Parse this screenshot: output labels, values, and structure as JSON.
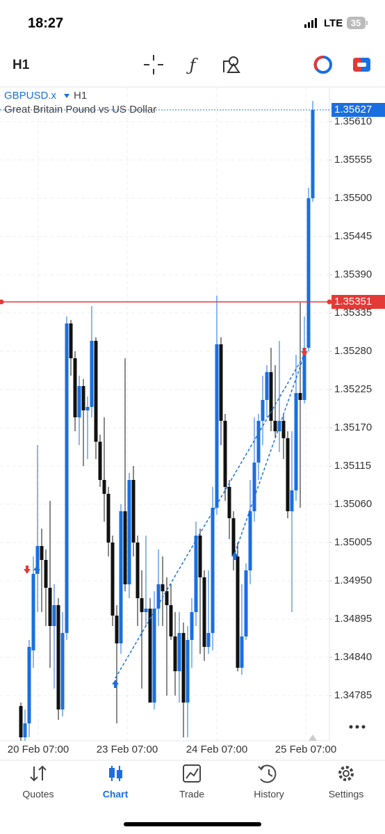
{
  "status_bar": {
    "time": "18:27",
    "network": "LTE",
    "battery": "35"
  },
  "toolbar": {
    "timeframe": "H1"
  },
  "chart": {
    "symbol": "GBPUSD.x",
    "timeframe": "H1",
    "description": "Great Britain Pound vs US Dollar",
    "ylim": [
      1.3472,
      1.3566
    ],
    "yticks": [
      {
        "value": 1.3561,
        "label": "1.35610"
      },
      1.35555,
      {
        "value": 1.355,
        "label": "1.35500"
      },
      1.35445,
      {
        "value": 1.3539,
        "label": "1.35390"
      },
      1.35335,
      {
        "value": 1.3528,
        "label": "1.35280"
      },
      1.35225,
      {
        "value": 1.3517,
        "label": "1.35170"
      },
      1.35115,
      {
        "value": 1.3506,
        "label": "1.35060"
      },
      1.35005,
      {
        "value": 1.3495,
        "label": "1.34950"
      },
      1.34895,
      {
        "value": 1.3484,
        "label": "1.34840"
      },
      1.34785
    ],
    "bid": 1.35627,
    "line_price": 1.35351,
    "xticks": [
      "20 Feb 07:00",
      "23 Feb 07:00",
      "24 Feb 07:00",
      "25 Feb 07:00"
    ],
    "up_color": "#1a6fe0",
    "down_color": "#111111",
    "candles": [
      [
        1.3477,
        1.34775,
        1.3472,
        1.34725
      ],
      [
        1.34725,
        1.34765,
        1.3472,
        1.34745
      ],
      [
        1.34745,
        1.34865,
        1.34725,
        1.34855
      ],
      [
        1.3485,
        1.34985,
        1.34825,
        1.3496
      ],
      [
        1.3496,
        1.35145,
        1.34905,
        1.35
      ],
      [
        1.35,
        1.35025,
        1.34905,
        1.3498
      ],
      [
        1.3498,
        1.34995,
        1.34885,
        1.3494
      ],
      [
        1.3494,
        1.35065,
        1.34825,
        1.34885
      ],
      [
        1.34885,
        1.34945,
        1.34795,
        1.34915
      ],
      [
        1.34915,
        1.34925,
        1.3475,
        1.34765
      ],
      [
        1.34765,
        1.34905,
        1.34755,
        1.34875
      ],
      [
        1.34875,
        1.3533,
        1.34865,
        1.3532
      ],
      [
        1.3532,
        1.35325,
        1.35245,
        1.3527
      ],
      [
        1.3527,
        1.3528,
        1.35165,
        1.35185
      ],
      [
        1.35185,
        1.35245,
        1.35145,
        1.3523
      ],
      [
        1.3523,
        1.3524,
        1.35115,
        1.35195
      ],
      [
        1.35195,
        1.35215,
        1.35125,
        1.352
      ],
      [
        1.352,
        1.35345,
        1.35185,
        1.35295
      ],
      [
        1.35295,
        1.353,
        1.35125,
        1.3515
      ],
      [
        1.3515,
        1.3516,
        1.35085,
        1.35095
      ],
      [
        1.35095,
        1.35185,
        1.35035,
        1.35075
      ],
      [
        1.35075,
        1.35085,
        1.34985,
        1.35005
      ],
      [
        1.35005,
        1.35015,
        1.34885,
        1.349
      ],
      [
        1.349,
        1.34915,
        1.34745,
        1.3486
      ],
      [
        1.3486,
        1.3506,
        1.34845,
        1.3505
      ],
      [
        1.3505,
        1.3527,
        1.34935,
        1.34945
      ],
      [
        1.34945,
        1.35105,
        1.34925,
        1.35095
      ],
      [
        1.35095,
        1.35115,
        1.34985,
        1.35005
      ],
      [
        1.35005,
        1.35015,
        1.34885,
        1.34925
      ],
      [
        1.34925,
        1.34965,
        1.34795,
        1.34905
      ],
      [
        1.34905,
        1.35015,
        1.34885,
        1.3491
      ],
      [
        1.3491,
        1.34925,
        1.34775,
        1.34775
      ],
      [
        1.34775,
        1.34935,
        1.34765,
        1.3491
      ],
      [
        1.3491,
        1.34995,
        1.34885,
        1.34945
      ],
      [
        1.34945,
        1.34985,
        1.34885,
        1.34935
      ],
      [
        1.34935,
        1.34955,
        1.34785,
        1.34915
      ],
      [
        1.34915,
        1.34945,
        1.34865,
        1.3487
      ],
      [
        1.3487,
        1.34905,
        1.34785,
        1.3482
      ],
      [
        1.3482,
        1.34905,
        1.34775,
        1.34875
      ],
      [
        1.34875,
        1.3489,
        1.34725,
        1.34775
      ],
      [
        1.34775,
        1.34885,
        1.34725,
        1.34865
      ],
      [
        1.34865,
        1.34925,
        1.34825,
        1.34905
      ],
      [
        1.34905,
        1.35035,
        1.34885,
        1.35015
      ],
      [
        1.35015,
        1.35025,
        1.34845,
        1.34955
      ],
      [
        1.34955,
        1.34965,
        1.34835,
        1.34855
      ],
      [
        1.34855,
        1.34965,
        1.34845,
        1.34875
      ],
      [
        1.34875,
        1.35085,
        1.3485,
        1.35055
      ],
      [
        1.35055,
        1.3536,
        1.35045,
        1.3529
      ],
      [
        1.3529,
        1.353,
        1.35145,
        1.3518
      ],
      [
        1.3518,
        1.3519,
        1.35065,
        1.35085
      ],
      [
        1.35085,
        1.35095,
        1.3501,
        1.3504
      ],
      [
        1.3504,
        1.3505,
        1.34965,
        1.34985
      ],
      [
        1.34985,
        1.35005,
        1.3482,
        1.34825
      ],
      [
        1.34825,
        1.34945,
        1.34815,
        1.3487
      ],
      [
        1.3487,
        1.34975,
        1.34865,
        1.34965
      ],
      [
        1.34965,
        1.35095,
        1.34945,
        1.3505
      ],
      [
        1.3505,
        1.35185,
        1.35035,
        1.3512
      ],
      [
        1.3512,
        1.3519,
        1.35095,
        1.3518
      ],
      [
        1.3518,
        1.35245,
        1.35145,
        1.3521
      ],
      [
        1.3521,
        1.3526,
        1.35185,
        1.3525
      ],
      [
        1.3525,
        1.35285,
        1.35165,
        1.3518
      ],
      [
        1.3518,
        1.3526,
        1.35155,
        1.35165
      ],
      [
        1.35165,
        1.35295,
        1.35135,
        1.3518
      ],
      [
        1.3518,
        1.3519,
        1.35125,
        1.35155
      ],
      [
        1.35155,
        1.35165,
        1.3504,
        1.3505
      ],
      [
        1.3505,
        1.35165,
        1.34905,
        1.3508
      ],
      [
        1.3508,
        1.35275,
        1.35065,
        1.3522
      ],
      [
        1.3522,
        1.3535,
        1.35055,
        1.3521
      ],
      [
        1.3521,
        1.3533,
        1.35205,
        1.35285
      ],
      [
        1.35285,
        1.35515,
        1.3528,
        1.355
      ],
      [
        1.355,
        1.3564,
        1.35495,
        1.35627
      ]
    ]
  },
  "tabs": [
    "Quotes",
    "Chart",
    "Trade",
    "History",
    "Settings"
  ]
}
